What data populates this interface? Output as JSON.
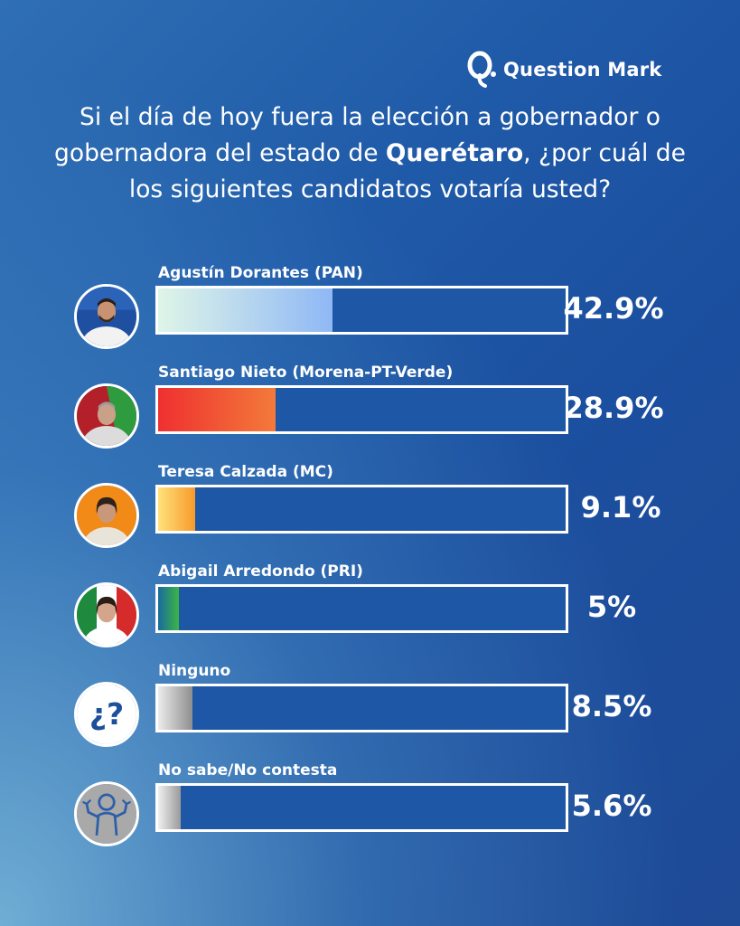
{
  "brand": {
    "name": "Question Mark",
    "icon": "q-logo-icon"
  },
  "question": {
    "before": "Si el día de hoy fuera la elección a gobernador o gobernadora del estado de ",
    "highlight": "Querétaro",
    "after": ", ¿por cuál de los siguientes candidatos votaría usted?"
  },
  "chart_data": {
    "type": "bar",
    "orientation": "horizontal",
    "unit": "%",
    "xlim": [
      0,
      100
    ],
    "categories": [
      "Agustín Dorantes (PAN)",
      "Santiago Nieto (Morena-PT-Verde)",
      "Teresa Calzada (MC)",
      "Abigail Arredondo (PRI)",
      "Ninguno",
      "No sabe/No contesta"
    ],
    "values": [
      42.9,
      28.9,
      9.1,
      5,
      8.5,
      5.6
    ],
    "labels": [
      "42.9%",
      "28.9%",
      "9.1%",
      "5%",
      "8.5%",
      "5.6%"
    ],
    "bar_gradients": [
      [
        "#dff5e8",
        "#8fb8f5"
      ],
      [
        "#ef3030",
        "#f37a3a"
      ],
      [
        "#ffe27a",
        "#f79a2c"
      ],
      [
        "#1a6aa0",
        "#3cb544"
      ],
      [
        "#ececec",
        "#8e8e8e"
      ],
      [
        "#f0f0f0",
        "#9a9a9a"
      ]
    ],
    "icons": [
      "avatar-agustin-dorantes",
      "avatar-santiago-nieto",
      "avatar-teresa-calzada",
      "avatar-abigail-arredondo",
      "question-mark-icon",
      "shrug-person-icon"
    ]
  }
}
